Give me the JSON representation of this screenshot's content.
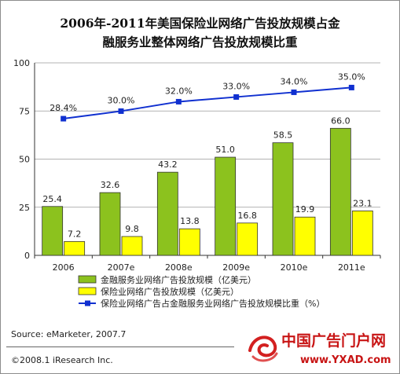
{
  "title_line1": "2006年-2011年美国保险业网络广告投放规模占金",
  "title_line2": "融服务业整体网络广告投放规模比重",
  "source": "Source: eMarketer, 2007.7",
  "copyright": "©2008.1 iResearch Inc.",
  "watermark": {
    "brand": "中国广告门户网",
    "url": "www.YXAD.com"
  },
  "colors": {
    "green": "#8cc21e",
    "yellow": "#ffff00",
    "line": "#1030d0"
  },
  "chart_data": {
    "type": "bar",
    "categories": [
      "2006",
      "2007e",
      "2008e",
      "2009e",
      "2010e",
      "2011e"
    ],
    "ylim": [
      0,
      100
    ],
    "yticks": [
      0,
      25,
      50,
      75,
      100
    ],
    "grid": true,
    "legend_position": "bottom",
    "series": [
      {
        "name": "金融服务业网络广告投放规模（亿美元）",
        "kind": "bar",
        "color": "#8cc21e",
        "values": [
          25.4,
          32.6,
          43.2,
          51.0,
          58.5,
          66.0
        ],
        "labels": [
          "25.4",
          "32.6",
          "43.2",
          "51.0",
          "58.5",
          "66.0"
        ]
      },
      {
        "name": "保险业网络广告投放规模（亿美元）",
        "kind": "bar",
        "color": "#ffff00",
        "values": [
          7.2,
          9.8,
          13.8,
          16.8,
          19.9,
          23.1
        ],
        "labels": [
          "7.2",
          "9.8",
          "13.8",
          "16.8",
          "19.9",
          "23.1"
        ]
      },
      {
        "name": "保险业网络广告占金融服务业网络广告投放规模比重（%）",
        "kind": "line",
        "color": "#1030d0",
        "values": [
          28.4,
          30.0,
          32.0,
          33.0,
          34.0,
          35.0
        ],
        "labels": [
          "28.4%",
          "30.0%",
          "32.0%",
          "33.0%",
          "34.0%",
          "35.0%"
        ]
      }
    ]
  }
}
